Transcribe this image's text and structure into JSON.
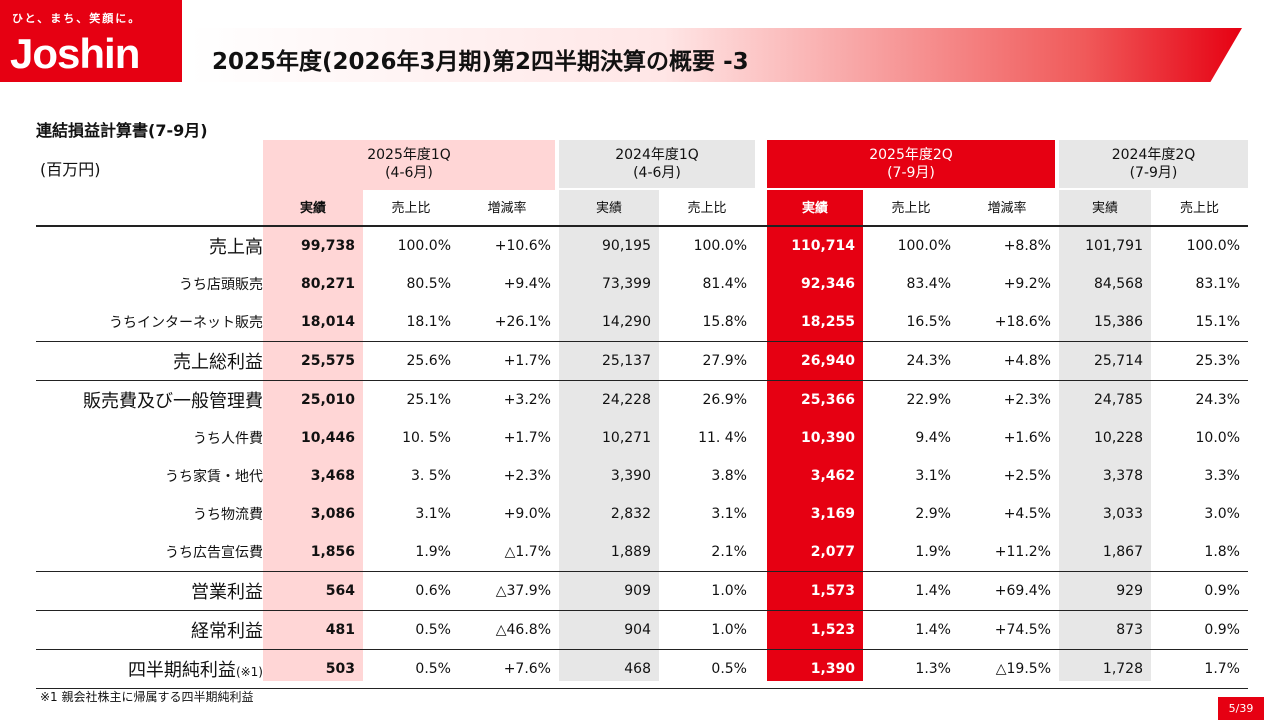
{
  "brand": {
    "tagline": "ひと、まち、笑顔に。",
    "name": "Joshin"
  },
  "title": "2025年度(2026年3月期)第2四半期決算の概要 -3",
  "subtitle": "連結損益計算書(7-9月)",
  "unit": "(百万円)",
  "column_groups": [
    {
      "label": "2025年度1Q\n(4-6月)"
    },
    {
      "label": "2024年度1Q\n(4-6月)"
    },
    {
      "label": "2025年度2Q\n(7-9月)"
    },
    {
      "label": "2024年度2Q\n(7-9月)"
    }
  ],
  "sub_headers": [
    "実績",
    "売上比",
    "増減率",
    "実績",
    "売上比",
    "実績",
    "売上比",
    "増減率",
    "実績",
    "売上比"
  ],
  "rows": [
    {
      "label": "売上高",
      "sub": false,
      "cells": [
        "99,738",
        "100.0%",
        "+10.6%",
        "90,195",
        "100.0%",
        "110,714",
        "100.0%",
        "+8.8%",
        "101,791",
        "100.0%"
      ]
    },
    {
      "label": "うち店頭販売",
      "sub": true,
      "cells": [
        "80,271",
        "80.5%",
        "+9.4%",
        "73,399",
        "81.4%",
        "92,346",
        "83.4%",
        "+9.2%",
        "84,568",
        "83.1%"
      ]
    },
    {
      "label": "うちインターネット販売",
      "sub": true,
      "cells": [
        "18,014",
        "18.1%",
        "+26.1%",
        "14,290",
        "15.8%",
        "18,255",
        "16.5%",
        "+18.6%",
        "15,386",
        "15.1%"
      ]
    },
    {
      "label": "売上総利益",
      "sub": false,
      "cells": [
        "25,575",
        "25.6%",
        "+1.7%",
        "25,137",
        "27.9%",
        "26,940",
        "24.3%",
        "+4.8%",
        "25,714",
        "25.3%"
      ]
    },
    {
      "label": "販売費及び一般管理費",
      "sub": false,
      "cells": [
        "25,010",
        "25.1%",
        "+3.2%",
        "24,228",
        "26.9%",
        "25,366",
        "22.9%",
        "+2.3%",
        "24,785",
        "24.3%"
      ]
    },
    {
      "label": "うち人件費",
      "sub": true,
      "cells": [
        "10,446",
        "10. 5%",
        "+1.7%",
        "10,271",
        "11. 4%",
        "10,390",
        "9.4%",
        "+1.6%",
        "10,228",
        "10.0%"
      ]
    },
    {
      "label": "うち家賃・地代",
      "sub": true,
      "cells": [
        "3,468",
        "3. 5%",
        "+2.3%",
        "3,390",
        "3.8%",
        "3,462",
        "3.1%",
        "+2.5%",
        "3,378",
        "3.3%"
      ]
    },
    {
      "label": "うち物流費",
      "sub": true,
      "cells": [
        "3,086",
        "3.1%",
        "+9.0%",
        "2,832",
        "3.1%",
        "3,169",
        "2.9%",
        "+4.5%",
        "3,033",
        "3.0%"
      ]
    },
    {
      "label": "うち広告宣伝費",
      "sub": true,
      "cells": [
        "1,856",
        "1.9%",
        "△1.7%",
        "1,889",
        "2.1%",
        "2,077",
        "1.9%",
        "+11.2%",
        "1,867",
        "1.8%"
      ]
    },
    {
      "label": "営業利益",
      "sub": false,
      "cells": [
        "564",
        "0.6%",
        "△37.9%",
        "909",
        "1.0%",
        "1,573",
        "1.4%",
        "+69.4%",
        "929",
        "0.9%"
      ]
    },
    {
      "label": "経常利益",
      "sub": false,
      "cells": [
        "481",
        "0.5%",
        "△46.8%",
        "904",
        "1.0%",
        "1,523",
        "1.4%",
        "+74.5%",
        "873",
        "0.9%"
      ]
    },
    {
      "label": "四半期純利益",
      "label_note": "(※1)",
      "sub": false,
      "cells": [
        "503",
        "0.5%",
        "+7.6%",
        "468",
        "0.5%",
        "1,390",
        "1.3%",
        "△19.5%",
        "1,728",
        "1.7%"
      ]
    }
  ],
  "footnote": "※1 親会社株主に帰属する四半期純利益",
  "page": "5/39",
  "colors": {
    "accent": "#e60012",
    "pink": "#ffd6d6",
    "gray": "#e7e7e7"
  }
}
